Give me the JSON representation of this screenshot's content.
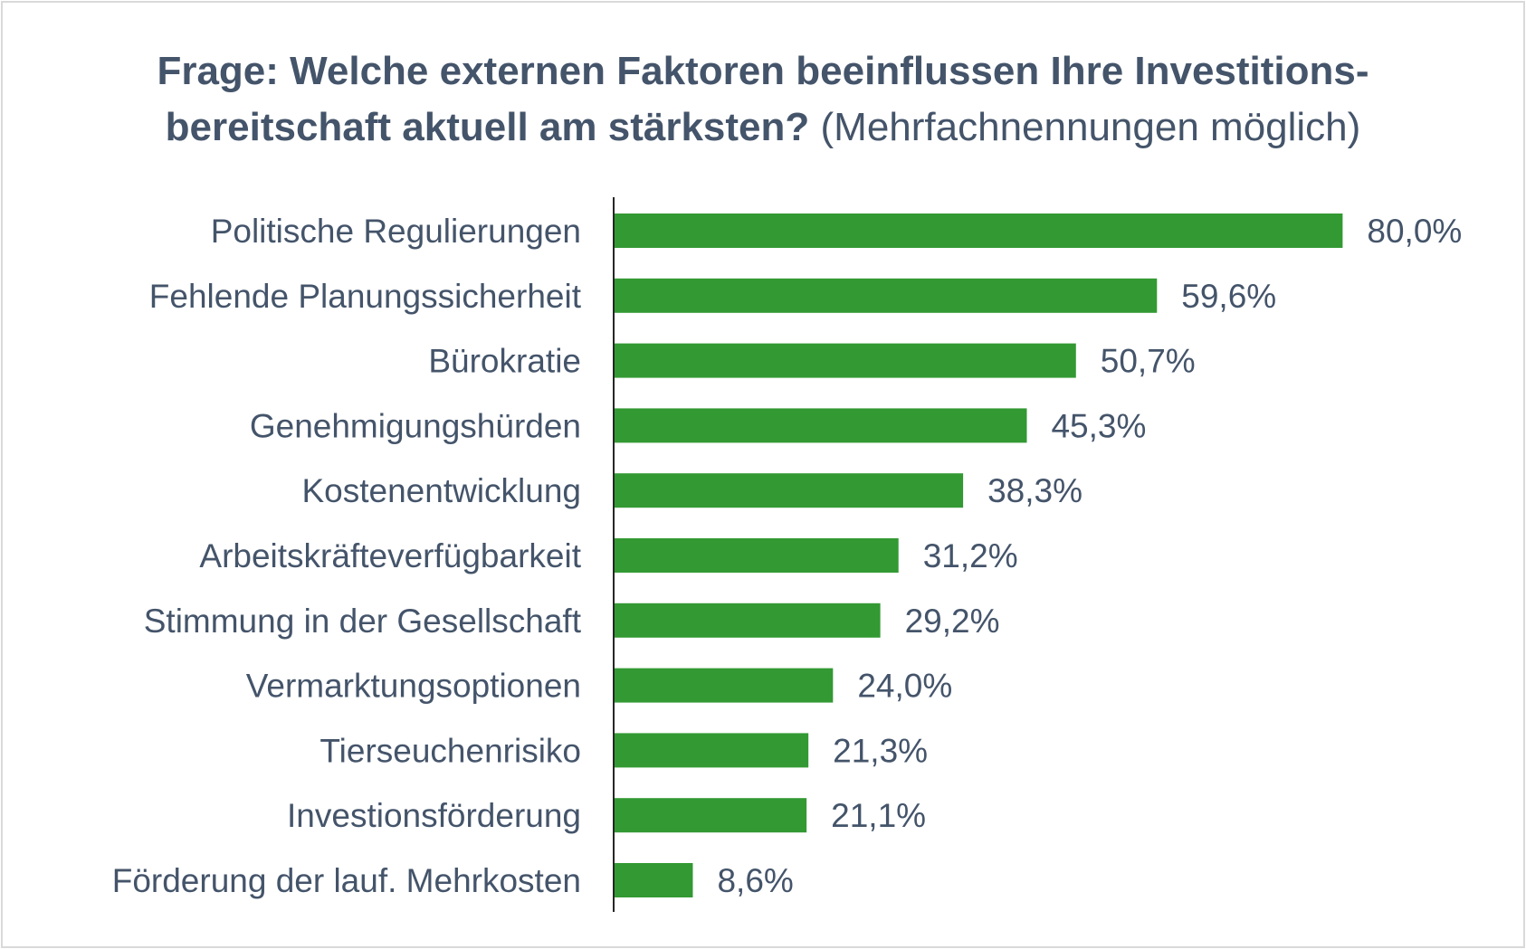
{
  "chart_data": {
    "type": "bar",
    "orientation": "horizontal",
    "title_bold_line1": "Frage: Welche externen Faktoren beeinflussen Ihre Investitions-",
    "title_bold_line2": "bereitschaft aktuell am stärksten?",
    "title_note": "(Mehrfachnennungen möglich)",
    "categories": [
      "Politische Regulierungen",
      "Fehlende Planungssicherheit",
      "Bürokratie",
      "Genehmigungshürden",
      "Kostenentwicklung",
      "Arbeitskräfteverfügbarkeit",
      "Stimmung in der Gesellschaft",
      "Vermarktungsoptionen",
      "Tierseuchenrisiko",
      "Investionsförderung",
      "Förderung der lauf. Mehrkosten"
    ],
    "values": [
      80.0,
      59.6,
      50.7,
      45.3,
      38.3,
      31.2,
      29.2,
      24.0,
      21.3,
      21.1,
      8.6
    ],
    "value_labels": [
      "80,0%",
      "59,6%",
      "50,7%",
      "45,3%",
      "38,3%",
      "31,2%",
      "29,2%",
      "24,0%",
      "21,3%",
      "21,1%",
      "8,6%"
    ],
    "unit": "%",
    "xlim": [
      0,
      80
    ],
    "grid": false,
    "legend": "none",
    "bar_color": "#339933",
    "text_color": "#44546a"
  }
}
